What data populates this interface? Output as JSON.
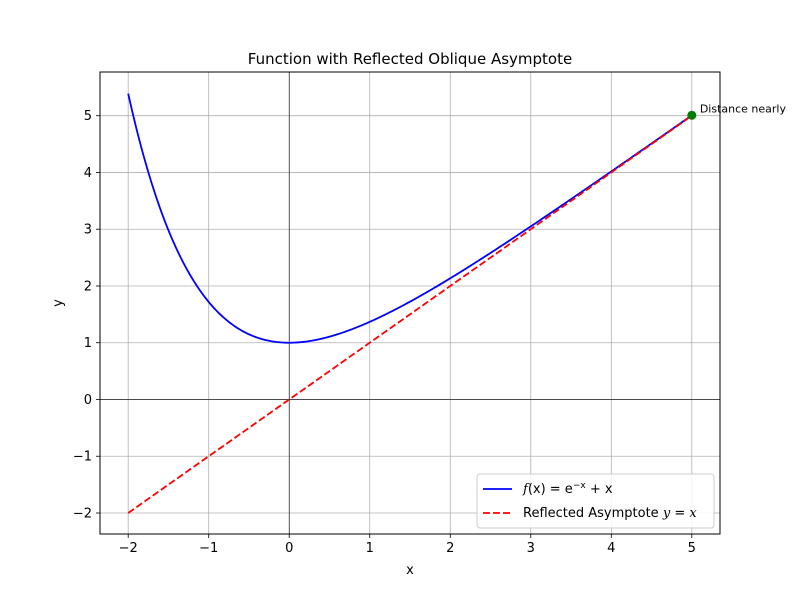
{
  "chart_data": {
    "type": "line",
    "title": "Function with Reflected Oblique Asymptote",
    "xlabel": "x",
    "ylabel": "y",
    "xlim": [
      -2.35,
      5.35
    ],
    "ylim": [
      -2.37,
      5.77
    ],
    "x_ticks": [
      -2,
      -1,
      0,
      1,
      2,
      3,
      4,
      5
    ],
    "y_ticks": [
      -2,
      -1,
      0,
      1,
      2,
      3,
      4,
      5
    ],
    "x_tick_labels": [
      "−2",
      "−1",
      "0",
      "1",
      "2",
      "3",
      "4",
      "5"
    ],
    "y_tick_labels": [
      "−2",
      "−1",
      "0",
      "1",
      "2",
      "3",
      "4",
      "5"
    ],
    "grid": true,
    "legend_position": "bottom-right",
    "series": [
      {
        "name": "f(x) = e^{-x} + x",
        "color": "#0000ff",
        "style": "solid",
        "x": [
          -2,
          -1.75,
          -1.5,
          -1.25,
          -1,
          -0.75,
          -0.5,
          -0.25,
          0,
          0.25,
          0.5,
          0.75,
          1,
          1.25,
          1.5,
          1.75,
          2,
          2.25,
          2.5,
          2.75,
          3,
          3.25,
          3.5,
          3.75,
          4,
          4.25,
          4.5,
          4.75,
          5
        ],
        "y": [
          5.389,
          4.005,
          2.982,
          2.24,
          1.718,
          1.367,
          1.149,
          1.034,
          1.0,
          1.029,
          1.107,
          1.222,
          1.368,
          1.537,
          1.723,
          1.924,
          2.135,
          2.355,
          2.582,
          2.814,
          3.05,
          3.289,
          3.53,
          3.774,
          4.018,
          4.264,
          4.511,
          4.759,
          5.007
        ]
      },
      {
        "name": "Reflected Asymptote y = x",
        "color": "#ff0000",
        "style": "dashed",
        "x": [
          -2,
          5
        ],
        "y": [
          -2,
          5
        ]
      }
    ],
    "points": [
      {
        "x": 5,
        "y": 5.007,
        "color": "#008000"
      }
    ],
    "annotations": [
      {
        "text": "Distance nearly",
        "x": 5,
        "y": 5.007
      }
    ],
    "legend": [
      {
        "prefix": "f",
        "middle": "(x) = e",
        "sup": "−x",
        "suffix": " + x",
        "color": "#0000ff",
        "style": "solid"
      },
      {
        "plain": "Reflected Asymptote ",
        "ital": "y",
        "tail": " = ",
        "ital2": "x",
        "color": "#ff0000",
        "style": "dashed"
      }
    ]
  }
}
